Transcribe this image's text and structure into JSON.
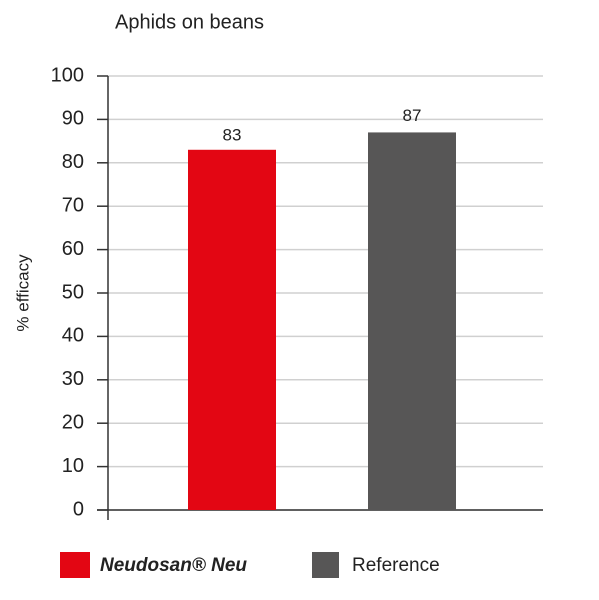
{
  "chart_data": {
    "type": "bar",
    "title": "Aphids on beans",
    "y_label": "% efficacy",
    "categories": [
      null
    ],
    "series": [
      {
        "name": "Neudosan® Neu",
        "color": "#e30613",
        "values": [
          83
        ]
      },
      {
        "name": "Reference",
        "color": "#575656",
        "values": [
          87
        ]
      }
    ],
    "ylim": [
      0,
      100
    ],
    "yticks": [
      0,
      10,
      20,
      30,
      40,
      50,
      60,
      70,
      80,
      90,
      100
    ],
    "grid": true
  }
}
